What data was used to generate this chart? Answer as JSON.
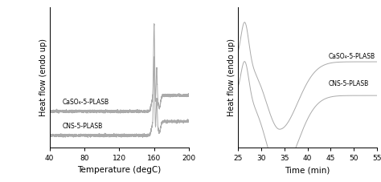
{
  "left": {
    "xlabel": "Temperature (degC)",
    "ylabel": "Heat flow (endo up)",
    "xlim": [
      40,
      200
    ],
    "xticks": [
      40,
      80,
      120,
      160,
      200
    ],
    "label1": "CaSO₄-5-PLASB",
    "label2": "CNS-5-PLASB",
    "line_color": "#aaaaaa"
  },
  "right": {
    "xlabel": "Time (min)",
    "ylabel": "Heat flow (endo up)",
    "xlim": [
      25,
      55
    ],
    "xticks": [
      25,
      30,
      35,
      40,
      45,
      50,
      55
    ],
    "label1": "CaSO₄-5-PLASB",
    "label2": "CNS-5-PLASB",
    "line_color": "#aaaaaa"
  }
}
